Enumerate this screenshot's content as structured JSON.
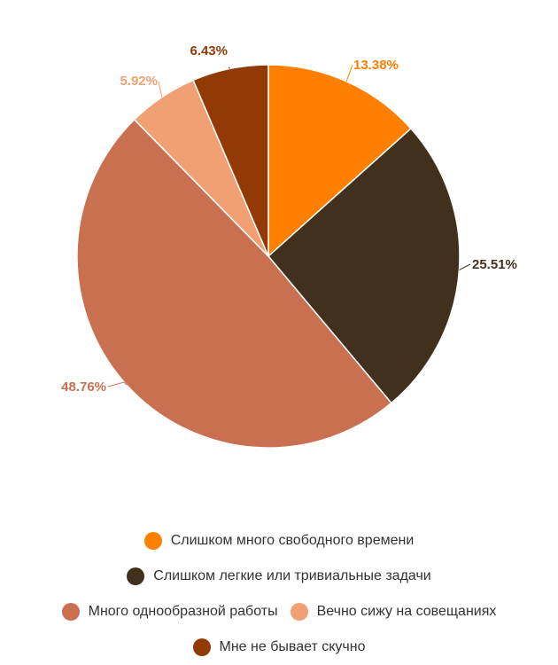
{
  "chart_data": {
    "type": "pie",
    "title": "",
    "legend_position": "bottom",
    "slices": [
      {
        "label": "Слишком много свободного времени",
        "value": 13.38,
        "value_label": "13.38%",
        "color": "#FF7F00"
      },
      {
        "label": "Слишком легкие или тривиальные задачи",
        "value": 25.51,
        "value_label": "25.51%",
        "color": "#41301C"
      },
      {
        "label": "Много однообразной работы",
        "value": 48.76,
        "value_label": "48.76%",
        "color": "#C8704F"
      },
      {
        "label": "Вечно сижу на совещаниях",
        "value": 5.92,
        "value_label": "5.92%",
        "color": "#F0A073"
      },
      {
        "label": "Мне не бывает скучно",
        "value": 6.43,
        "value_label": "6.43%",
        "color": "#923A06"
      }
    ]
  },
  "legend_rows": [
    [
      0
    ],
    [
      1
    ],
    [
      2,
      3
    ],
    [
      4
    ]
  ]
}
